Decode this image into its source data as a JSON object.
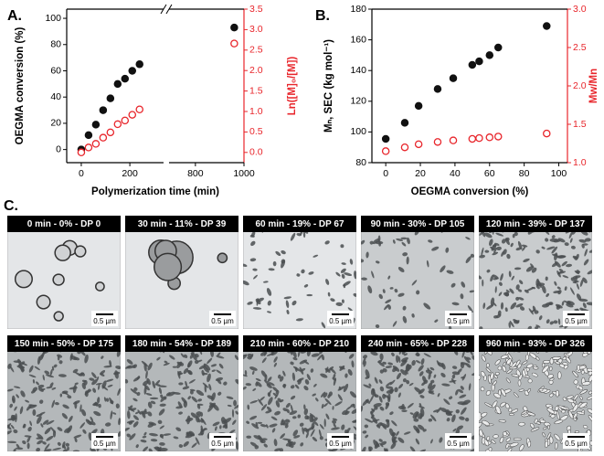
{
  "chart_data": [
    {
      "type": "scatter",
      "label": "A.",
      "xlabel": "Polymerization time (min)",
      "ylabel": "OEGMA conversion (%)",
      "y2label": "Ln([M]₀/[M])",
      "x": [
        0,
        30,
        60,
        90,
        120,
        150,
        180,
        210,
        240,
        960
      ],
      "xlim": [
        -60,
        1000
      ],
      "xbreak": [
        350,
        680
      ],
      "xticks": [
        0,
        200,
        800,
        1000
      ],
      "ylim": [
        -10,
        107
      ],
      "yticks": [
        0,
        20,
        40,
        60,
        80,
        100
      ],
      "y2lim": [
        -0.25,
        3.5
      ],
      "y2ticks": [
        {
          "value": 0,
          "label": "0.0"
        },
        {
          "value": 0.5,
          "label": "0.5"
        },
        {
          "value": 1,
          "label": "1.0"
        },
        {
          "value": 1.5,
          "label": "1.5"
        },
        {
          "value": 2,
          "label": "2.0"
        },
        {
          "value": 2.5,
          "label": "2.5"
        },
        {
          "value": 3,
          "label": "3.0"
        },
        {
          "value": 3.5,
          "label": "3.5"
        }
      ],
      "y2color": "#e8252b",
      "series": [
        {
          "color": "#111111",
          "marker": "filled",
          "values": [
            0,
            11,
            19,
            30,
            39,
            50,
            54,
            60,
            65,
            93
          ]
        },
        {
          "color": "#e8252b",
          "marker": "open",
          "axis": "y2",
          "values": [
            0,
            0.12,
            0.21,
            0.36,
            0.49,
            0.69,
            0.78,
            0.92,
            1.05,
            2.66
          ]
        }
      ]
    },
    {
      "type": "scatter",
      "label": "B.",
      "xlabel": "OEGMA conversion (%)",
      "ylabel": "Mₙ, SEC (kg mol⁻¹)",
      "y2label": "Mw/Mn",
      "x": [
        0,
        11,
        19,
        30,
        39,
        50,
        54,
        60,
        65,
        93
      ],
      "xlim": [
        -8,
        105
      ],
      "xticks": [
        0,
        20,
        40,
        60,
        80,
        100
      ],
      "ylim": [
        80,
        180
      ],
      "yticks": [
        80,
        100,
        120,
        140,
        160,
        180
      ],
      "y2lim": [
        1,
        3
      ],
      "y2ticks": [
        {
          "value": 1,
          "label": "1.0"
        },
        {
          "value": 1.5,
          "label": "1.5"
        },
        {
          "value": 2,
          "label": "2.0"
        },
        {
          "value": 2.5,
          "label": "2.5"
        },
        {
          "value": 3,
          "label": "3.0"
        }
      ],
      "y2color": "#e8252b",
      "series": [
        {
          "color": "#111111",
          "marker": "filled",
          "values": [
            95.5,
            106,
            117,
            128,
            135,
            143.7,
            146,
            150,
            155,
            169
          ]
        },
        {
          "color": "#e8252b",
          "marker": "open",
          "axis": "y2",
          "values": [
            1.15,
            1.2,
            1.24,
            1.27,
            1.29,
            1.31,
            1.32,
            1.33,
            1.34,
            1.38
          ]
        }
      ]
    }
  ],
  "panel_c": {
    "label": "C.",
    "images": [
      {
        "caption": "0 min - 0% - DP 0",
        "scale_bar": "0.5 µm"
      },
      {
        "caption": "30 min - 11% - DP 39",
        "scale_bar": "0.5 µm"
      },
      {
        "caption": "60 min - 19% - DP 67",
        "scale_bar": "0.5 µm"
      },
      {
        "caption": "90 min - 30% - DP 105",
        "scale_bar": "0.5 µm"
      },
      {
        "caption": "120 min - 39% - DP 137",
        "scale_bar": "0.5 µm"
      },
      {
        "caption": "150 min - 50% - DP 175",
        "scale_bar": "0.5 µm"
      },
      {
        "caption": "180 min - 54% - DP 189",
        "scale_bar": "0.5 µm"
      },
      {
        "caption": "210 min - 60% - DP 210",
        "scale_bar": "0.5 µm"
      },
      {
        "caption": "240 min - 65% - DP 228",
        "scale_bar": "0.5 µm"
      },
      {
        "caption": "960 min - 93% - DP 326",
        "scale_bar": "0.5 µm"
      }
    ]
  }
}
